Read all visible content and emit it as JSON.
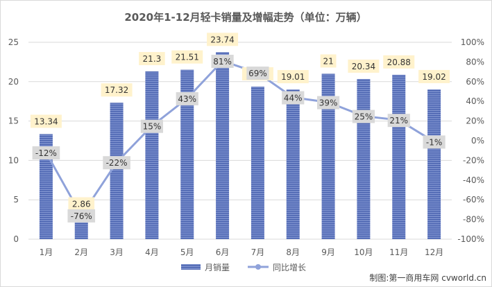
{
  "chart_data": {
    "type": "bar",
    "title": "2020年1-12月轻卡销量及增幅走势（单位：万辆）",
    "categories": [
      "1月",
      "2月",
      "3月",
      "4月",
      "5月",
      "6月",
      "7月",
      "8月",
      "9月",
      "10月",
      "11月",
      "12月"
    ],
    "series": [
      {
        "name": "月销量",
        "type": "bar",
        "axis": "left",
        "values": [
          13.34,
          2.86,
          17.32,
          21.3,
          21.51,
          23.74,
          19.37,
          19.01,
          21,
          20.34,
          20.88,
          19.02
        ],
        "labels": [
          "13.34",
          "2.86",
          "17.32",
          "21.3",
          "21.51",
          "23.74",
          "19.37",
          "19.01",
          "21",
          "20.34",
          "20.88",
          "19.02"
        ]
      },
      {
        "name": "同比增长",
        "type": "line",
        "axis": "right",
        "values": [
          -12,
          -76,
          -22,
          15,
          43,
          81,
          69,
          44,
          39,
          25,
          21,
          -1
        ],
        "labels": [
          "-12%",
          "-76%",
          "-22%",
          "15%",
          "43%",
          "81%",
          "69%",
          "44%",
          "39%",
          "25%",
          "21%",
          "-1%"
        ]
      }
    ],
    "y_left": {
      "min": 0,
      "max": 25,
      "ticks": [
        "0",
        "5",
        "10",
        "15",
        "20",
        "25"
      ]
    },
    "y_right": {
      "min": -100,
      "max": 100,
      "ticks": [
        "-100%",
        "-80%",
        "-60%",
        "-40%",
        "-20%",
        "0%",
        "20%",
        "40%",
        "60%",
        "80%",
        "100%"
      ]
    },
    "legend_position": "bottom",
    "grid": true
  },
  "credit": "制图:第一商用车网 cvworld.cn",
  "colors": {
    "bar": "#4A63B0",
    "bar_stripe": "#8EA0D8",
    "line": "#8FA2DA",
    "bar_label_bg": "#FFF2CC",
    "line_label_bg": "#D9D9D9",
    "grid": "#D9D9D9"
  }
}
